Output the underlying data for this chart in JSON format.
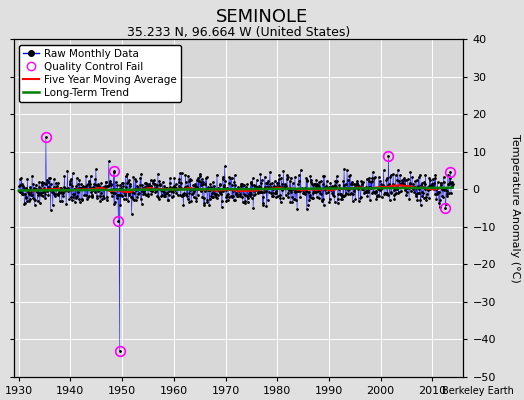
{
  "title": "SEMINOLE",
  "subtitle": "35.233 N, 96.664 W (United States)",
  "ylabel": "Temperature Anomaly (°C)",
  "xlabel_bottom": "Berkeley Earth",
  "xlim": [
    1929,
    2016
  ],
  "ylim": [
    -50,
    40
  ],
  "yticks": [
    -50,
    -40,
    -30,
    -20,
    -10,
    0,
    10,
    20,
    30,
    40
  ],
  "xticks": [
    1930,
    1940,
    1950,
    1960,
    1970,
    1980,
    1990,
    2000,
    2010
  ],
  "start_year": 1930,
  "end_year": 2014,
  "seed": 42,
  "background_color": "#e0e0e0",
  "plot_bg_color": "#d8d8d8",
  "raw_line_color": "blue",
  "raw_marker_color": "black",
  "qc_fail_color": "magenta",
  "moving_avg_color": "red",
  "trend_color": "green",
  "title_fontsize": 13,
  "subtitle_fontsize": 9,
  "tick_fontsize": 8,
  "ylabel_fontsize": 8,
  "legend_fontsize": 7.5,
  "qc_fail_positions": [
    [
      1935.25,
      14.0
    ],
    [
      1948.5,
      5.0
    ],
    [
      1949.25,
      -8.5
    ],
    [
      1949.5,
      -43.0
    ],
    [
      2001.5,
      9.0
    ],
    [
      2012.5,
      -5.0
    ],
    [
      2013.5,
      4.5
    ]
  ]
}
